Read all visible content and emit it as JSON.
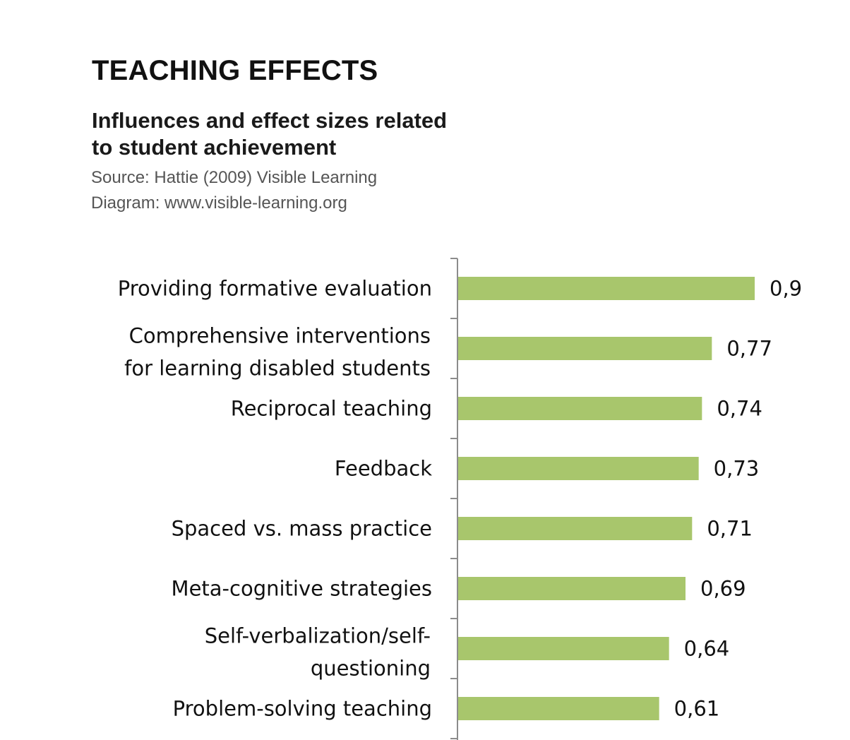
{
  "header": {
    "title": "TEACHING EFFECTS",
    "subtitle_line1": "Influences and effect sizes related",
    "subtitle_line2": "to student achievement",
    "source": "Source: Hattie (2009) Visible Learning",
    "diagram": "Diagram: www.visible-learning.org"
  },
  "chart_data": {
    "type": "bar",
    "orientation": "horizontal",
    "title": "TEACHING EFFECTS",
    "subtitle": "Influences and effect sizes related to student achievement",
    "categories": [
      [
        "Providing formative evaluation"
      ],
      [
        "Comprehensive interventions",
        "for learning disabled students"
      ],
      [
        "Reciprocal teaching"
      ],
      [
        "Feedback"
      ],
      [
        "Spaced vs. mass practice"
      ],
      [
        "Meta-cognitive strategies"
      ],
      [
        "Self-verbalization/self-",
        "questioning"
      ],
      [
        "Problem-solving teaching"
      ]
    ],
    "values": [
      0.9,
      0.77,
      0.74,
      0.73,
      0.71,
      0.69,
      0.64,
      0.61
    ],
    "value_labels": [
      "0,9",
      "0,77",
      "0,74",
      "0,73",
      "0,71",
      "0,69",
      "0,64",
      "0,61"
    ],
    "xlim": [
      0,
      0.9
    ],
    "bar_color": "#a8c66c",
    "axis_color": "#8c8c8c",
    "grid": false,
    "legend": "none"
  }
}
